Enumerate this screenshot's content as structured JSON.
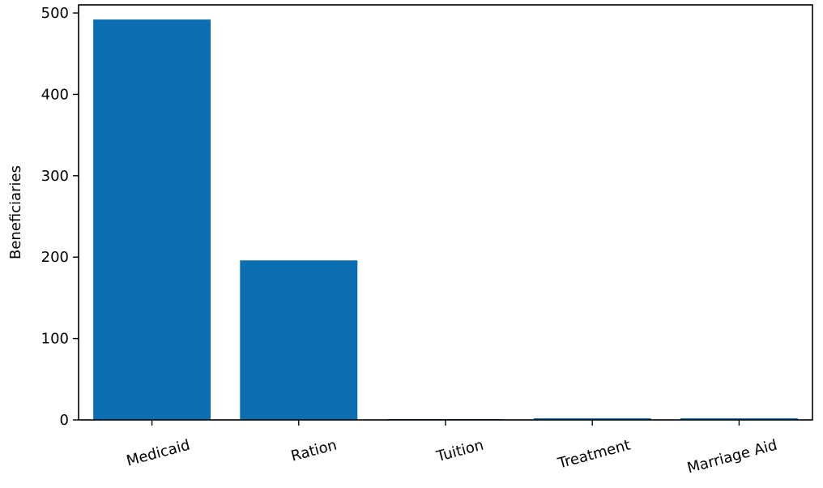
{
  "chart_data": {
    "type": "bar",
    "categories": [
      "Medicaid",
      "Ration",
      "Tuition",
      "Treatment",
      "Marriage Aid"
    ],
    "values": [
      492,
      196,
      1,
      2,
      2
    ],
    "title": "",
    "xlabel": "",
    "ylabel": "Beneficiaries",
    "ylim": [
      0,
      510
    ],
    "yticks": [
      0,
      100,
      200,
      300,
      400,
      500
    ],
    "grid": false,
    "bar_color": "#0a6eb0"
  }
}
